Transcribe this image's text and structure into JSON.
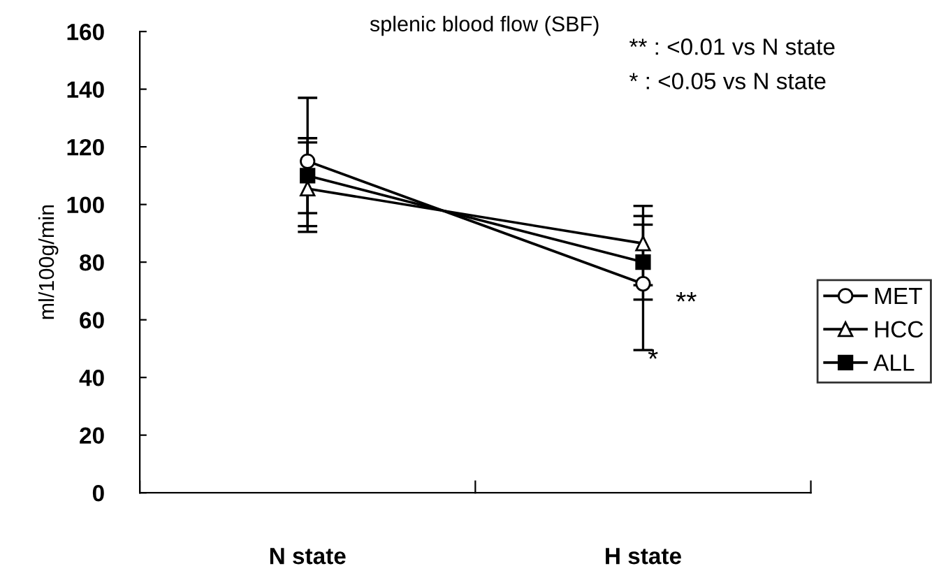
{
  "chart_data": {
    "type": "line",
    "title": "splenic blood flow (SBF)",
    "ylabel": "ml/100g/min",
    "categories": [
      "N state",
      "H state"
    ],
    "series": [
      {
        "name": "MET",
        "color": "#000000",
        "marker": "circle",
        "values": [
          115,
          72.5
        ],
        "errors": [
          [
            92.5,
            137
          ],
          [
            49.5,
            96
          ]
        ]
      },
      {
        "name": "HCC",
        "color": "#000000",
        "marker": "triangle",
        "values": [
          105.5,
          86.5
        ],
        "errors": [
          [
            90.5,
            121.5
          ],
          [
            72,
            99.5
          ]
        ]
      },
      {
        "name": "ALL",
        "color": "#000000",
        "marker": "square",
        "values": [
          110,
          80
        ],
        "errors": [
          [
            97,
            123
          ],
          [
            67,
            93
          ]
        ]
      }
    ],
    "annotations": [
      "** : <0.01 vs N state",
      "* : <0.05 vs N state",
      "**",
      "*"
    ],
    "ylim": [
      0,
      160
    ],
    "yticks": [
      0,
      20,
      40,
      60,
      80,
      100,
      120,
      140,
      160
    ],
    "grid": false,
    "legend": "right",
    "line_style": "solid"
  }
}
